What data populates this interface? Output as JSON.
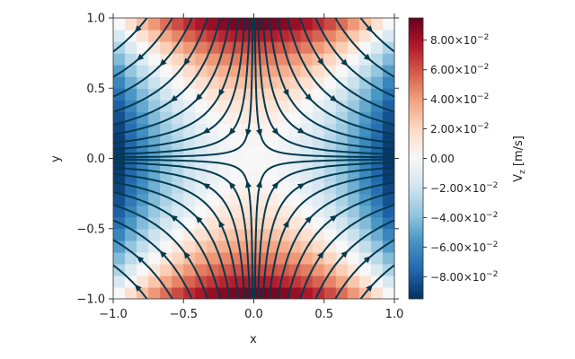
{
  "chart_data": {
    "type": "heatmap",
    "subtype": "saddle-point field with streamlines",
    "xlabel": "x",
    "ylabel": "y",
    "xlim": [
      -1.0,
      1.0
    ],
    "ylim": [
      -1.0,
      1.0
    ],
    "xticks": [
      -1.0,
      -0.5,
      0.0,
      0.5,
      1.0
    ],
    "yticks": [
      -1.0,
      -0.5,
      0.0,
      0.5,
      1.0
    ],
    "xtick_labels": [
      "−1.0",
      "−0.5",
      "0.0",
      "0.5",
      "1.0"
    ],
    "ytick_labels": [
      "−1.0",
      "−0.5",
      "0.0",
      "0.5",
      "1.0"
    ],
    "colorbar": {
      "label": "V_z [m/s]",
      "label_parts": {
        "base": "V",
        "sub": "z",
        "unit": " [m/s]"
      },
      "vmin": -0.095,
      "vmax": 0.095,
      "ticks": [
        0.08,
        0.06,
        0.04,
        0.02,
        0.0,
        -0.02,
        -0.04,
        -0.06,
        -0.08
      ],
      "tick_labels": [
        "8.00×10",
        "6.00×10",
        "4.00×10",
        "2.00×10",
        "0.00",
        "−2.00×10",
        "−4.00×10",
        "−6.00×10",
        "−8.00×10"
      ],
      "tick_exponents": [
        "−2",
        "−2",
        "−2",
        "−2",
        "",
        "−2",
        "−2",
        "−2",
        "−2"
      ],
      "colormap": "RdBu_r",
      "colors": {
        "min": "#053061",
        "mid": "#f7f7f7",
        "max": "#67001f"
      }
    },
    "field": {
      "formula": "Vz = 0.1 * (y^2 - x^2)",
      "grid_cells": [
        24,
        24
      ],
      "streamline_function": "psi = x*y",
      "flow": "inflow along y axis, outflow along x axis"
    },
    "streamline_color": "#033a4e",
    "grid": false
  }
}
